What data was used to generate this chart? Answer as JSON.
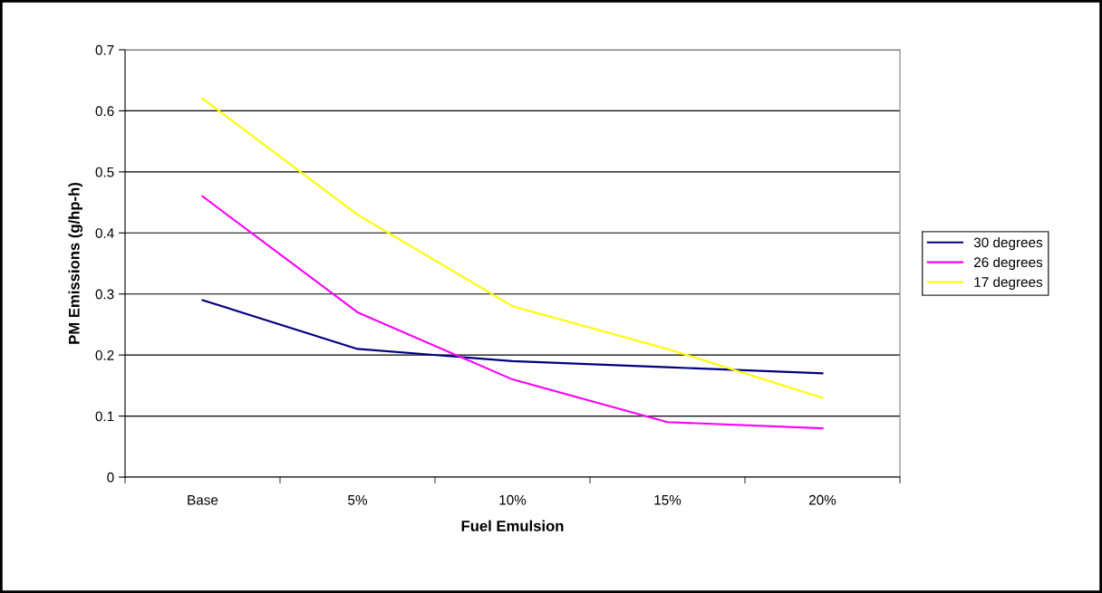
{
  "chart_data": {
    "type": "line",
    "xlabel": "Fuel Emulsion",
    "ylabel": "PM Emissions (g/hp-h)",
    "categories": [
      "Base",
      "5%",
      "10%",
      "15%",
      "20%"
    ],
    "series": [
      {
        "name": "30 degrees",
        "color": "#000080",
        "values": [
          0.29,
          0.21,
          0.19,
          0.18,
          0.17
        ]
      },
      {
        "name": "26 degrees",
        "color": "#ff00ff",
        "values": [
          0.46,
          0.27,
          0.16,
          0.09,
          0.08
        ]
      },
      {
        "name": "17 degrees",
        "color": "#ffff00",
        "values": [
          0.62,
          0.43,
          0.28,
          0.21,
          0.13
        ]
      }
    ],
    "ylim": [
      0,
      0.7
    ],
    "yticks": [
      {
        "value": 0,
        "label": "0"
      },
      0.1,
      0.2,
      0.3,
      0.4,
      0.5,
      0.6,
      0.7
    ],
    "grid": "y",
    "legend": "right",
    "marker": "none",
    "line_style": "solid"
  }
}
